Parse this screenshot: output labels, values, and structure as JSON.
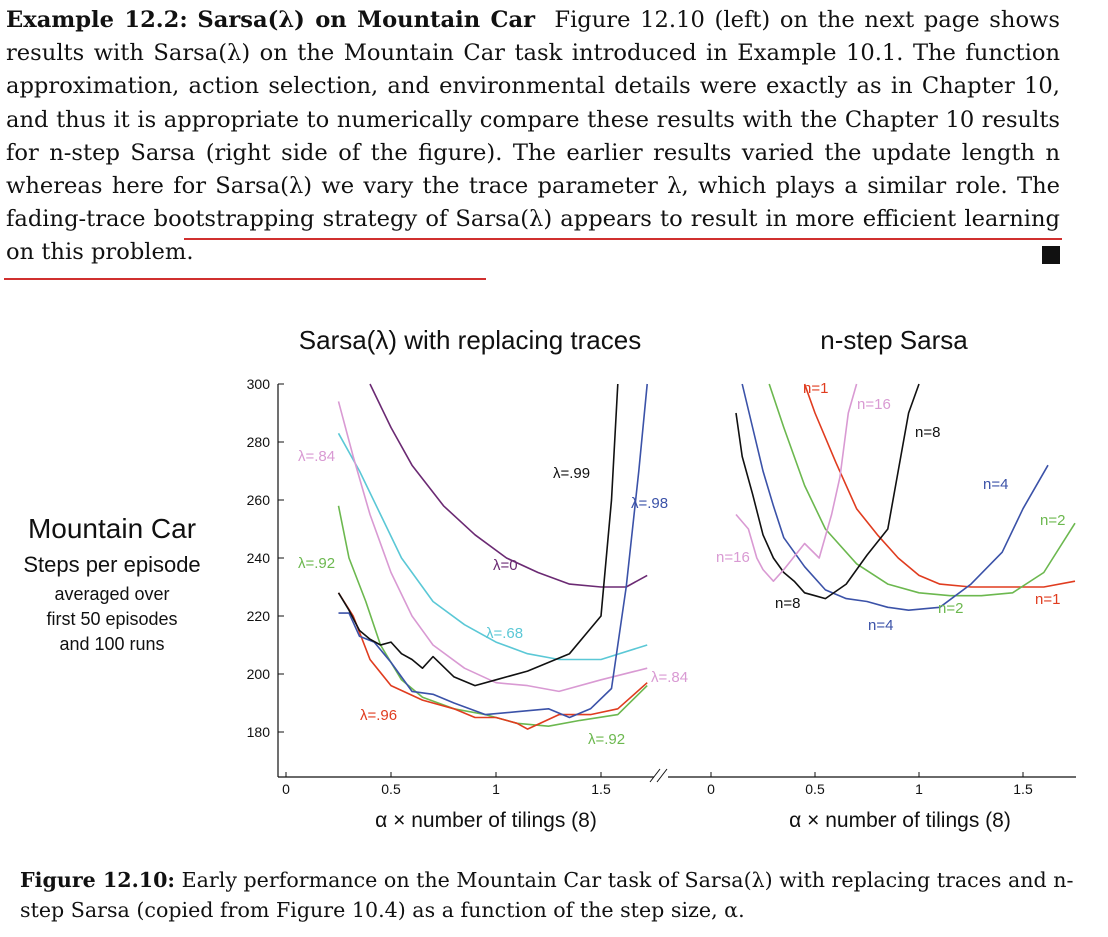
{
  "example": {
    "label": "Example 12.2:",
    "title": "Sarsa(λ) on Mountain Car",
    "text": "Figure 12.10 (left) on the next page shows results with Sarsa(λ) on the Mountain Car task introduced in Example 10.1. The function approximation, action selection, and environmental details were exactly as in Chapter 10, and thus it is appropriate to numerically compare these results with the Chapter 10 results for n-step Sarsa (right side of the figure). The earlier results varied the update length n whereas here for Sarsa(λ) we vary the trace parameter λ, which plays a similar role.",
    "highlight": "The fading-trace bootstrapping strategy of Sarsa(λ) appears to result in more efficient learning on this problem."
  },
  "side_label": {
    "title": "Mountain Car",
    "subtitle": "Steps per episode",
    "line1": "averaged over",
    "line2": "first 50 episodes",
    "line3": "and 100 runs"
  },
  "caption": {
    "label": "Figure 12.10:",
    "text": "Early performance on the Mountain Car task of Sarsa(λ) with replacing traces and n-step Sarsa (copied from Figure 10.4) as a function of the step size, α."
  },
  "chart_data": [
    {
      "type": "line",
      "title": "Sarsa(λ) with replacing traces",
      "xlabel": "α × number of tilings (8)",
      "xlim": [
        0,
        1.75
      ],
      "ylim": [
        172,
        300
      ],
      "xticks": [
        "0",
        "0.5",
        "1",
        "1.5"
      ],
      "yticks": [
        "180",
        "200",
        "220",
        "240",
        "260",
        "280",
        "300"
      ],
      "series": [
        {
          "name": "λ=0",
          "color": "#6b2a73",
          "x": [
            0.4,
            0.5,
            0.6,
            0.75,
            0.9,
            1.05,
            1.2,
            1.35,
            1.5,
            1.62,
            1.72
          ],
          "y": [
            300,
            285,
            272,
            258,
            248,
            240,
            235,
            231,
            230,
            230,
            234
          ]
        },
        {
          "name": "λ=.68",
          "color": "#5bc8d6",
          "x": [
            0.25,
            0.35,
            0.45,
            0.55,
            0.7,
            0.85,
            1.0,
            1.15,
            1.3,
            1.5,
            1.72
          ],
          "y": [
            283,
            270,
            255,
            240,
            225,
            217,
            211,
            207,
            205,
            205,
            210
          ]
        },
        {
          "name": "λ=.84",
          "color": "#d99ad3",
          "x": [
            0.25,
            0.32,
            0.4,
            0.5,
            0.6,
            0.7,
            0.85,
            1.0,
            1.15,
            1.3,
            1.5,
            1.72
          ],
          "y": [
            294,
            275,
            255,
            235,
            220,
            210,
            202,
            197,
            196,
            194,
            198,
            202
          ]
        },
        {
          "name": "λ=.92",
          "color": "#6cb84f",
          "x": [
            0.25,
            0.3,
            0.38,
            0.45,
            0.55,
            0.65,
            0.8,
            0.95,
            1.1,
            1.25,
            1.4,
            1.58,
            1.72
          ],
          "y": [
            258,
            240,
            225,
            210,
            198,
            192,
            188,
            186,
            183,
            182,
            184,
            186,
            196
          ]
        },
        {
          "name": "λ=.96",
          "color": "#e03c1f",
          "x": [
            0.25,
            0.32,
            0.4,
            0.5,
            0.65,
            0.8,
            0.9,
            1.0,
            1.1,
            1.15,
            1.3,
            1.45,
            1.58,
            1.72
          ],
          "y": [
            228,
            220,
            205,
            196,
            191,
            188,
            185,
            185,
            183,
            181,
            186,
            186,
            188,
            197
          ]
        },
        {
          "name": "λ=.98",
          "color": "#3b52a8",
          "x": [
            0.25,
            0.3,
            0.35,
            0.42,
            0.5,
            0.6,
            0.7,
            0.8,
            0.95,
            1.1,
            1.25,
            1.35,
            1.45,
            1.55,
            1.62,
            1.68,
            1.72
          ],
          "y": [
            221,
            221,
            213,
            211,
            204,
            194,
            193,
            190,
            186,
            187,
            188,
            185,
            188,
            195,
            230,
            270,
            300
          ]
        },
        {
          "name": "λ=.99",
          "color": "#111111",
          "x": [
            0.25,
            0.3,
            0.35,
            0.4,
            0.45,
            0.5,
            0.55,
            0.6,
            0.65,
            0.7,
            0.8,
            0.9,
            1.0,
            1.15,
            1.35,
            1.5,
            1.55,
            1.58
          ],
          "y": [
            228,
            222,
            215,
            212,
            210,
            211,
            207,
            205,
            202,
            206,
            199,
            196,
            198,
            201,
            207,
            220,
            260,
            300
          ]
        }
      ]
    },
    {
      "type": "line",
      "title": "n-step Sarsa",
      "xlabel": "α × number of tilings (8)",
      "xlim": [
        0,
        1.75
      ],
      "ylim": [
        172,
        300
      ],
      "xticks": [
        "0",
        "0.5",
        "1",
        "1.5"
      ],
      "series": [
        {
          "name": "n=1",
          "color": "#e03c1f",
          "x": [
            0.45,
            0.5,
            0.6,
            0.7,
            0.8,
            0.9,
            1.0,
            1.1,
            1.25,
            1.4,
            1.6,
            1.75
          ],
          "y": [
            300,
            290,
            273,
            257,
            248,
            240,
            234,
            231,
            230,
            230,
            230,
            232
          ]
        },
        {
          "name": "n=2",
          "color": "#6cb84f",
          "x": [
            0.28,
            0.35,
            0.45,
            0.55,
            0.7,
            0.85,
            1.0,
            1.15,
            1.3,
            1.45,
            1.6,
            1.75
          ],
          "y": [
            300,
            285,
            265,
            250,
            238,
            231,
            228,
            227,
            227,
            228,
            235,
            252
          ]
        },
        {
          "name": "n=4",
          "color": "#3b52a8",
          "x": [
            0.15,
            0.2,
            0.25,
            0.3,
            0.35,
            0.45,
            0.55,
            0.65,
            0.75,
            0.85,
            0.95,
            1.1,
            1.25,
            1.4,
            1.5,
            1.62
          ],
          "y": [
            300,
            285,
            270,
            258,
            247,
            237,
            229,
            226,
            225,
            223,
            222,
            223,
            231,
            242,
            257,
            272
          ]
        },
        {
          "name": "n=8",
          "color": "#111111",
          "x": [
            0.12,
            0.15,
            0.2,
            0.25,
            0.3,
            0.35,
            0.4,
            0.45,
            0.5,
            0.55,
            0.65,
            0.75,
            0.85,
            0.9,
            0.95,
            1.0
          ],
          "y": [
            290,
            275,
            262,
            248,
            240,
            235,
            232,
            228,
            227,
            226,
            231,
            241,
            250,
            270,
            290,
            300
          ]
        },
        {
          "name": "n=16",
          "color": "#d99ad3",
          "x": [
            0.12,
            0.18,
            0.22,
            0.25,
            0.3,
            0.35,
            0.45,
            0.52,
            0.58,
            0.62,
            0.66,
            0.7
          ],
          "y": [
            255,
            250,
            240,
            236,
            232,
            236,
            245,
            240,
            255,
            268,
            290,
            300
          ]
        }
      ]
    }
  ]
}
